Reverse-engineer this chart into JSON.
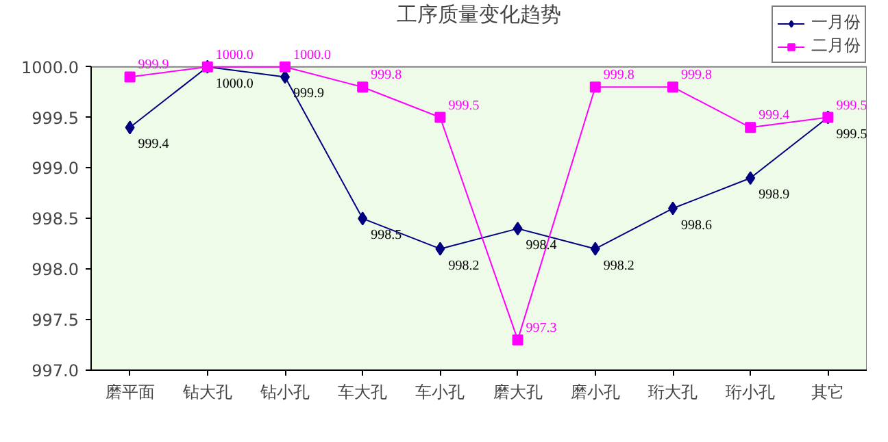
{
  "chart_data": {
    "type": "line",
    "title": "工序质量变化趋势",
    "categories": [
      "磨平面",
      "钻大孔",
      "钻小孔",
      "车大孔",
      "车小孔",
      "磨大孔",
      "磨小孔",
      "珩大孔",
      "珩小孔",
      "其它"
    ],
    "series": [
      {
        "name": "一月份",
        "color": "#000080",
        "marker": "diamond",
        "values": [
          999.4,
          1000.0,
          999.9,
          998.5,
          998.2,
          998.4,
          998.2,
          998.6,
          998.9,
          999.5
        ],
        "value_labels": [
          "999.4",
          "1000.0",
          "999.9",
          "998.5",
          "998.2",
          "998.4",
          "998.2",
          "998.6",
          "998.9",
          "999.5"
        ]
      },
      {
        "name": "二月份",
        "color": "#ff00ff",
        "marker": "square",
        "values": [
          999.9,
          1000.0,
          1000.0,
          999.8,
          999.5,
          997.3,
          999.8,
          999.8,
          999.4,
          999.5
        ],
        "value_labels": [
          "999.9",
          "1000.0",
          "1000.0",
          "999.8",
          "999.5",
          "997.3",
          "999.8",
          "999.8",
          "999.4",
          "999.5"
        ]
      }
    ],
    "ylim": [
      997.0,
      1000.0
    ],
    "yticks": [
      {
        "value": 997.0,
        "label": "997.0"
      },
      {
        "value": 997.5,
        "label": "997.5"
      },
      {
        "value": 998.0,
        "label": "998.0"
      },
      {
        "value": 998.5,
        "label": "998.5"
      },
      {
        "value": 999.0,
        "label": "999.0"
      },
      {
        "value": 999.5,
        "label": "999.5"
      },
      {
        "value": 1000.0,
        "label": "1000.0"
      }
    ],
    "grid": false,
    "legend": "top right",
    "line_style": "solid"
  }
}
